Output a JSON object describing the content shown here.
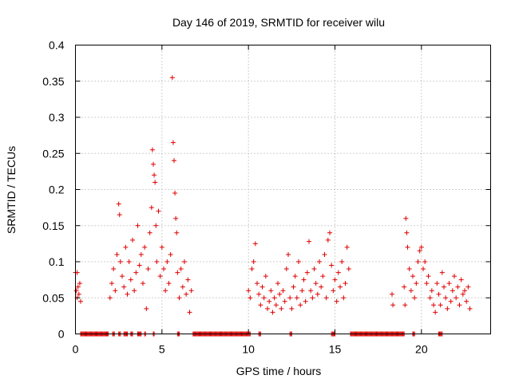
{
  "chart_data": {
    "type": "scatter",
    "title": "Day 146 of 2019, SRMTID for receiver wilu",
    "xlabel": "GPS time / hours",
    "ylabel": "SRMTID / TECUs",
    "xlim": [
      0,
      24
    ],
    "ylim": [
      0,
      0.4
    ],
    "xticks": [
      0,
      5,
      10,
      15,
      20
    ],
    "yticks": [
      0,
      0.05,
      0.1,
      0.15,
      0.2,
      0.25,
      0.3,
      0.35,
      0.4
    ],
    "xtick_labels": [
      "0",
      "5",
      "10",
      "15",
      "20"
    ],
    "ytick_labels": [
      "0",
      "0.05",
      "0.1",
      "0.15",
      "0.2",
      "0.25",
      "0.3",
      "0.35",
      "0.4"
    ],
    "grid": true,
    "marker": "+",
    "color": "#e00000",
    "series": [
      {
        "name": "SRMTID",
        "points": [
          [
            0.0,
            0.085
          ],
          [
            0.05,
            0.06
          ],
          [
            0.1,
            0.05
          ],
          [
            0.15,
            0.065
          ],
          [
            0.2,
            0.055
          ],
          [
            0.25,
            0.07
          ],
          [
            0.3,
            0.045
          ],
          [
            0.1,
            0.085
          ],
          [
            2.0,
            0.05
          ],
          [
            2.1,
            0.07
          ],
          [
            2.2,
            0.09
          ],
          [
            2.3,
            0.06
          ],
          [
            2.4,
            0.11
          ],
          [
            2.5,
            0.18
          ],
          [
            2.55,
            0.165
          ],
          [
            2.6,
            0.1
          ],
          [
            2.7,
            0.08
          ],
          [
            2.8,
            0.065
          ],
          [
            2.9,
            0.12
          ],
          [
            3.0,
            0.055
          ],
          [
            3.1,
            0.1
          ],
          [
            3.2,
            0.075
          ],
          [
            3.3,
            0.13
          ],
          [
            3.4,
            0.06
          ],
          [
            3.5,
            0.085
          ],
          [
            3.6,
            0.15
          ],
          [
            3.7,
            0.095
          ],
          [
            3.8,
            0.11
          ],
          [
            3.9,
            0.07
          ],
          [
            4.0,
            0.12
          ],
          [
            4.1,
            0.035
          ],
          [
            4.2,
            0.09
          ],
          [
            4.3,
            0.14
          ],
          [
            4.4,
            0.175
          ],
          [
            4.45,
            0.255
          ],
          [
            4.5,
            0.235
          ],
          [
            4.55,
            0.22
          ],
          [
            4.6,
            0.21
          ],
          [
            4.65,
            0.15
          ],
          [
            4.7,
            0.1
          ],
          [
            4.8,
            0.17
          ],
          [
            4.9,
            0.08
          ],
          [
            5.0,
            0.12
          ],
          [
            5.1,
            0.09
          ],
          [
            5.2,
            0.06
          ],
          [
            5.3,
            0.1
          ],
          [
            5.4,
            0.07
          ],
          [
            5.5,
            0.11
          ],
          [
            5.6,
            0.355
          ],
          [
            5.65,
            0.265
          ],
          [
            5.7,
            0.24
          ],
          [
            5.75,
            0.195
          ],
          [
            5.8,
            0.16
          ],
          [
            5.85,
            0.14
          ],
          [
            5.9,
            0.085
          ],
          [
            6.0,
            0.05
          ],
          [
            6.1,
            0.09
          ],
          [
            6.2,
            0.065
          ],
          [
            6.3,
            0.1
          ],
          [
            6.4,
            0.055
          ],
          [
            6.5,
            0.075
          ],
          [
            6.6,
            0.03
          ],
          [
            6.7,
            0.06
          ],
          [
            10.0,
            0.06
          ],
          [
            10.1,
            0.05
          ],
          [
            10.2,
            0.09
          ],
          [
            10.3,
            0.1
          ],
          [
            10.4,
            0.125
          ],
          [
            10.5,
            0.07
          ],
          [
            10.6,
            0.055
          ],
          [
            10.7,
            0.04
          ],
          [
            10.8,
            0.065
          ],
          [
            10.9,
            0.05
          ],
          [
            11.0,
            0.08
          ],
          [
            11.1,
            0.035
          ],
          [
            11.2,
            0.045
          ],
          [
            11.3,
            0.06
          ],
          [
            11.4,
            0.03
          ],
          [
            11.5,
            0.05
          ],
          [
            11.6,
            0.04
          ],
          [
            11.7,
            0.07
          ],
          [
            11.8,
            0.055
          ],
          [
            11.9,
            0.035
          ],
          [
            12.0,
            0.06
          ],
          [
            12.1,
            0.045
          ],
          [
            12.2,
            0.09
          ],
          [
            12.3,
            0.11
          ],
          [
            12.4,
            0.05
          ],
          [
            12.5,
            0.035
          ],
          [
            12.6,
            0.065
          ],
          [
            12.7,
            0.08
          ],
          [
            12.8,
            0.05
          ],
          [
            12.9,
            0.1
          ],
          [
            13.0,
            0.04
          ],
          [
            13.1,
            0.06
          ],
          [
            13.2,
            0.075
          ],
          [
            13.3,
            0.045
          ],
          [
            13.4,
            0.085
          ],
          [
            13.5,
            0.128
          ],
          [
            13.6,
            0.06
          ],
          [
            13.7,
            0.05
          ],
          [
            13.8,
            0.09
          ],
          [
            13.9,
            0.07
          ],
          [
            14.0,
            0.055
          ],
          [
            14.1,
            0.1
          ],
          [
            14.2,
            0.065
          ],
          [
            14.3,
            0.08
          ],
          [
            14.4,
            0.11
          ],
          [
            14.5,
            0.05
          ],
          [
            14.6,
            0.13
          ],
          [
            14.7,
            0.14
          ],
          [
            14.8,
            0.095
          ],
          [
            14.9,
            0.06
          ],
          [
            15.0,
            0.075
          ],
          [
            15.1,
            0.045
          ],
          [
            15.2,
            0.085
          ],
          [
            15.3,
            0.065
          ],
          [
            15.4,
            0.1
          ],
          [
            15.5,
            0.05
          ],
          [
            15.6,
            0.07
          ],
          [
            15.7,
            0.12
          ],
          [
            15.8,
            0.09
          ],
          [
            18.3,
            0.055
          ],
          [
            18.35,
            0.04
          ],
          [
            19.0,
            0.065
          ],
          [
            19.05,
            0.04
          ],
          [
            19.1,
            0.16
          ],
          [
            19.15,
            0.14
          ],
          [
            19.2,
            0.12
          ],
          [
            19.3,
            0.09
          ],
          [
            19.4,
            0.06
          ],
          [
            19.5,
            0.08
          ],
          [
            19.6,
            0.05
          ],
          [
            19.7,
            0.07
          ],
          [
            19.8,
            0.1
          ],
          [
            19.9,
            0.115
          ],
          [
            20.0,
            0.12
          ],
          [
            20.1,
            0.09
          ],
          [
            20.2,
            0.1
          ],
          [
            20.3,
            0.07
          ],
          [
            20.4,
            0.08
          ],
          [
            20.5,
            0.05
          ],
          [
            20.6,
            0.06
          ],
          [
            20.7,
            0.04
          ],
          [
            20.8,
            0.03
          ],
          [
            20.9,
            0.07
          ],
          [
            21.0,
            0.055
          ],
          [
            21.1,
            0.04
          ],
          [
            21.2,
            0.085
          ],
          [
            21.3,
            0.065
          ],
          [
            21.4,
            0.05
          ],
          [
            21.5,
            0.035
          ],
          [
            21.6,
            0.07
          ],
          [
            21.7,
            0.045
          ],
          [
            21.8,
            0.06
          ],
          [
            21.9,
            0.08
          ],
          [
            22.0,
            0.05
          ],
          [
            22.1,
            0.065
          ],
          [
            22.2,
            0.04
          ],
          [
            22.3,
            0.075
          ],
          [
            22.4,
            0.055
          ],
          [
            22.5,
            0.06
          ],
          [
            22.6,
            0.045
          ],
          [
            22.7,
            0.065
          ],
          [
            22.8,
            0.035
          ]
        ],
        "zero_segments": [
          [
            0.3,
            1.9
          ],
          [
            2.15,
            2.25
          ],
          [
            2.5,
            2.6
          ],
          [
            2.8,
            3.0
          ],
          [
            3.2,
            3.3
          ],
          [
            3.6,
            3.8
          ],
          [
            4.0,
            4.05
          ],
          [
            4.5,
            4.55
          ],
          [
            5.9,
            6.0
          ],
          [
            6.8,
            10.1
          ],
          [
            10.6,
            10.7
          ],
          [
            12.4,
            12.5
          ],
          [
            14.8,
            15.0
          ],
          [
            15.9,
            19.0
          ],
          [
            19.5,
            19.6
          ],
          [
            21.0,
            21.2
          ]
        ]
      }
    ]
  }
}
